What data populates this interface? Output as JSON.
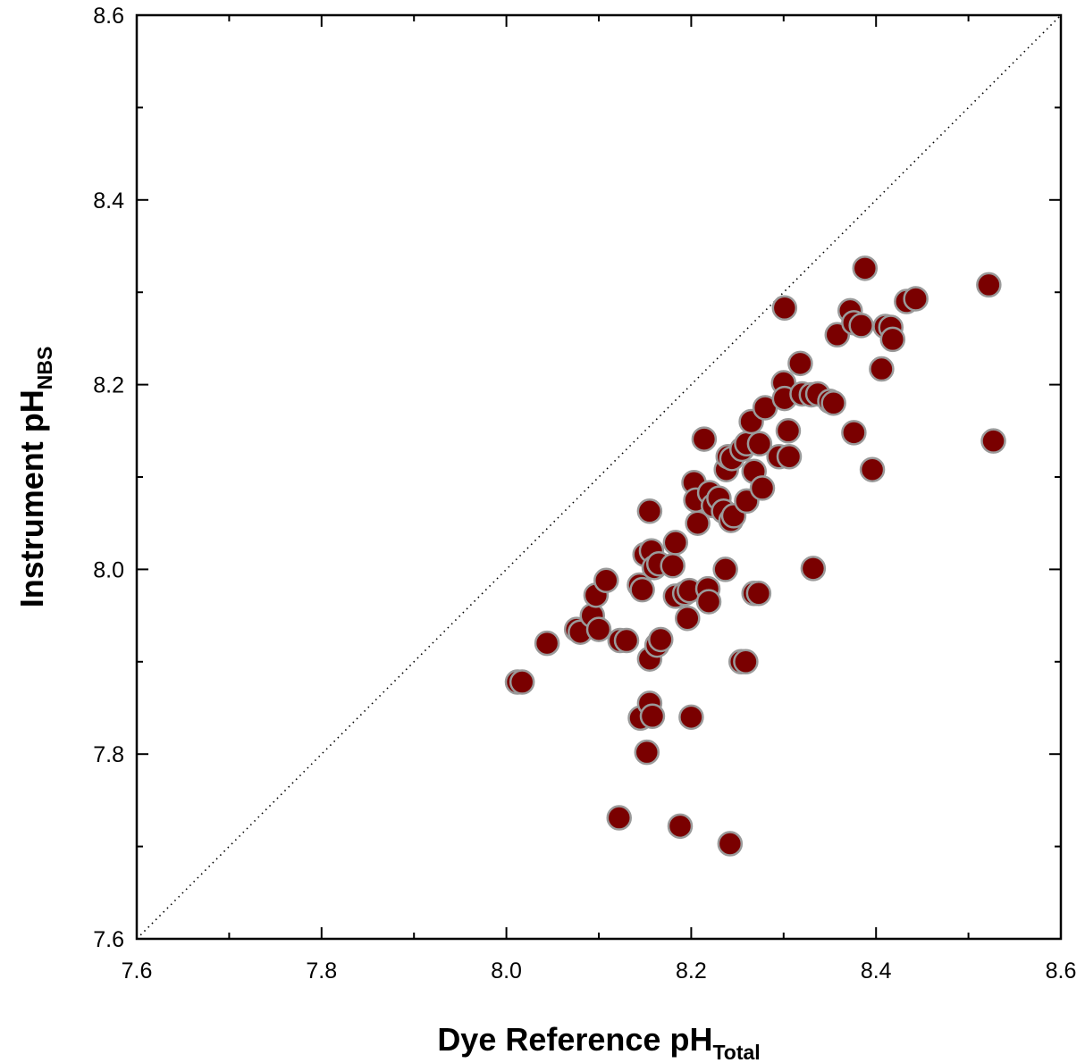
{
  "chart_data": {
    "type": "scatter",
    "xlabel": {
      "main": "Dye Reference pH",
      "sub": "Total"
    },
    "ylabel": {
      "main": "Instrument pH",
      "sub": "NBS"
    },
    "xlim": [
      7.6,
      8.6
    ],
    "ylim": [
      7.6,
      8.6
    ],
    "x_ticks": [
      "7.6",
      "7.8",
      "8.0",
      "8.2",
      "8.4",
      "8.6"
    ],
    "y_ticks": [
      "7.6",
      "7.8",
      "8.0",
      "8.2",
      "8.4",
      "8.6"
    ],
    "reference_line": {
      "style": "dotted",
      "from": [
        7.6,
        7.6
      ],
      "to": [
        8.6,
        8.6
      ]
    },
    "grid": false,
    "marker_color": "#7a0000",
    "marker_edge_color": "#9a9a9a",
    "points": [
      [
        8.012,
        7.878
      ],
      [
        8.017,
        7.878
      ],
      [
        8.044,
        7.92
      ],
      [
        8.076,
        7.935
      ],
      [
        8.08,
        7.932
      ],
      [
        8.093,
        7.95
      ],
      [
        8.097,
        7.972
      ],
      [
        8.1,
        7.935
      ],
      [
        8.108,
        7.988
      ],
      [
        8.123,
        7.923
      ],
      [
        8.13,
        7.923
      ],
      [
        8.122,
        7.731
      ],
      [
        8.144,
        7.983
      ],
      [
        8.147,
        7.978
      ],
      [
        8.15,
        8.016
      ],
      [
        8.155,
        8.063
      ],
      [
        8.157,
        8.02
      ],
      [
        8.16,
        8.002
      ],
      [
        8.165,
        8.006
      ],
      [
        8.155,
        7.903
      ],
      [
        8.163,
        7.918
      ],
      [
        8.167,
        7.924
      ],
      [
        8.145,
        7.839
      ],
      [
        8.155,
        7.855
      ],
      [
        8.158,
        7.841
      ],
      [
        8.152,
        7.802
      ],
      [
        8.18,
        8.004
      ],
      [
        8.183,
        8.029
      ],
      [
        8.183,
        7.971
      ],
      [
        8.193,
        7.974
      ],
      [
        8.198,
        7.977
      ],
      [
        8.196,
        7.947
      ],
      [
        8.2,
        7.84
      ],
      [
        8.188,
        7.722
      ],
      [
        8.203,
        8.094
      ],
      [
        8.205,
        8.075
      ],
      [
        8.207,
        8.05
      ],
      [
        8.214,
        8.141
      ],
      [
        8.22,
        8.083
      ],
      [
        8.224,
        8.069
      ],
      [
        8.218,
        7.979
      ],
      [
        8.219,
        7.965
      ],
      [
        8.23,
        8.077
      ],
      [
        8.235,
        8.063
      ],
      [
        8.238,
        8.108
      ],
      [
        8.24,
        8.122
      ],
      [
        8.244,
        8.12
      ],
      [
        8.243,
        8.053
      ],
      [
        8.246,
        8.058
      ],
      [
        8.237,
        8.0
      ],
      [
        8.255,
        8.13
      ],
      [
        8.26,
        8.136
      ],
      [
        8.26,
        8.074
      ],
      [
        8.265,
        8.16
      ],
      [
        8.268,
        8.106
      ],
      [
        8.274,
        8.136
      ],
      [
        8.277,
        8.088
      ],
      [
        8.268,
        7.974
      ],
      [
        8.273,
        7.974
      ],
      [
        8.254,
        7.9
      ],
      [
        8.259,
        7.9
      ],
      [
        8.242,
        7.703
      ],
      [
        8.28,
        8.175
      ],
      [
        8.295,
        8.122
      ],
      [
        8.3,
        8.202
      ],
      [
        8.301,
        8.185
      ],
      [
        8.305,
        8.15
      ],
      [
        8.306,
        8.122
      ],
      [
        8.301,
        8.283
      ],
      [
        8.318,
        8.223
      ],
      [
        8.32,
        8.19
      ],
      [
        8.33,
        8.189
      ],
      [
        8.337,
        8.19
      ],
      [
        8.35,
        8.182
      ],
      [
        8.354,
        8.18
      ],
      [
        8.332,
        8.001
      ],
      [
        8.358,
        8.254
      ],
      [
        8.372,
        8.28
      ],
      [
        8.376,
        8.267
      ],
      [
        8.384,
        8.264
      ],
      [
        8.388,
        8.326
      ],
      [
        8.376,
        8.148
      ],
      [
        8.396,
        8.108
      ],
      [
        8.406,
        8.217
      ],
      [
        8.41,
        8.263
      ],
      [
        8.416,
        8.262
      ],
      [
        8.418,
        8.249
      ],
      [
        8.433,
        8.29
      ],
      [
        8.443,
        8.293
      ],
      [
        8.522,
        8.308
      ],
      [
        8.527,
        8.139
      ]
    ]
  }
}
